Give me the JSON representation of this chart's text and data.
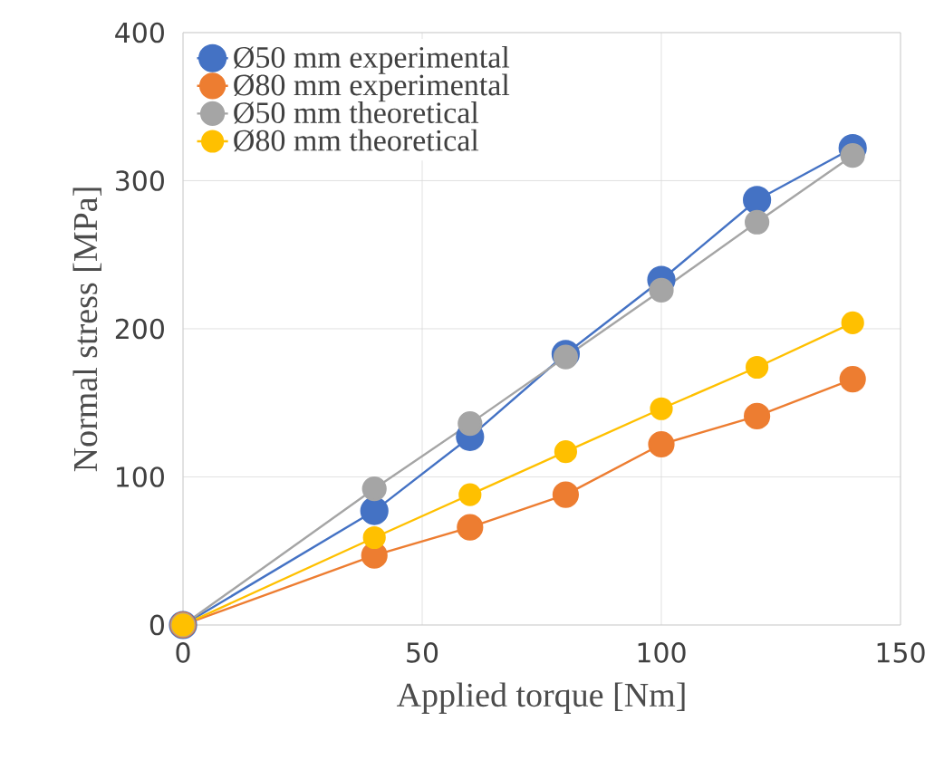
{
  "chart_data": {
    "type": "line",
    "xlabel": "Applied torque [Nm]",
    "ylabel": "Normal stress [MPa]",
    "x": [
      0,
      40,
      60,
      80,
      100,
      120,
      140
    ],
    "series": [
      {
        "name": "Ø50 mm experimental",
        "color": "#4472c4",
        "values": [
          0,
          77,
          127,
          183,
          233,
          287,
          322
        ]
      },
      {
        "name": "Ø80 mm experimental",
        "color": "#ed7d31",
        "values": [
          0,
          47,
          66,
          88,
          122,
          141,
          166
        ]
      },
      {
        "name": "Ø50 mm theoretical",
        "color": "#a5a5a5",
        "values": [
          0,
          92,
          136,
          181,
          226,
          272,
          317
        ]
      },
      {
        "name": "Ø80 mm theoretical",
        "color": "#ffc000",
        "values": [
          0,
          59,
          88,
          117,
          146,
          174,
          204
        ]
      }
    ],
    "xlim": [
      0,
      150
    ],
    "xticks": [
      0,
      50,
      100,
      150
    ],
    "ylim": [
      0,
      400
    ],
    "yticks": [
      0,
      100,
      200,
      300,
      400
    ],
    "grid": true,
    "legend": "top left",
    "marker": "circle",
    "line_style": "solid"
  }
}
